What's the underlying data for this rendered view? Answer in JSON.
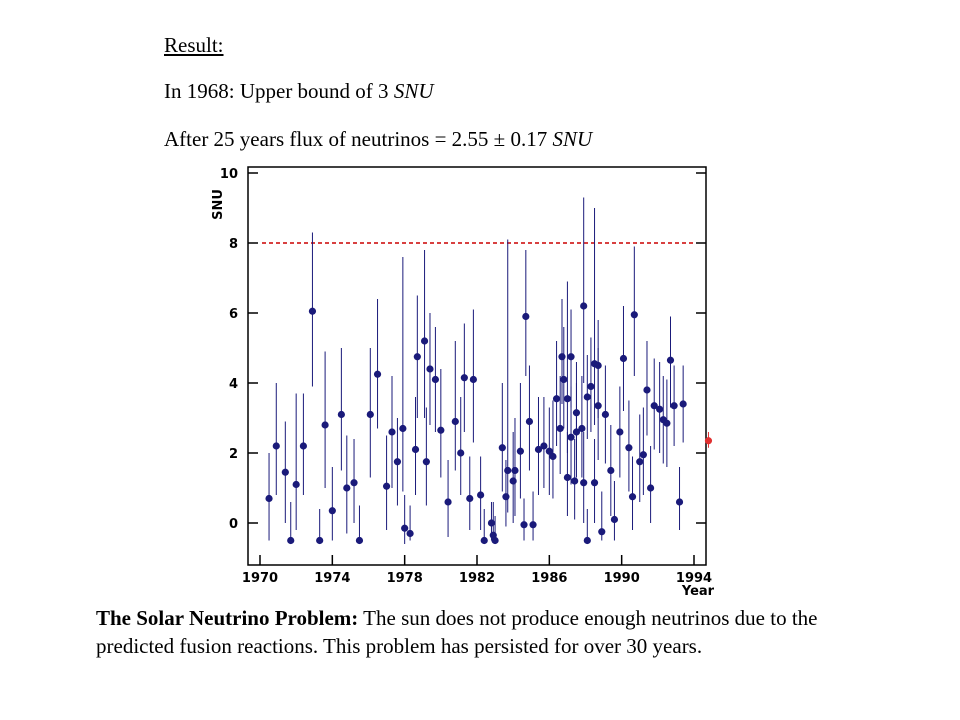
{
  "header": {
    "result_label": "Result:",
    "line_1968_prefix": "In 1968: Upper bound of 3 ",
    "line_1968_unit": "SNU",
    "line_25_prefix": "After 25 years flux of neutrinos = 2.55 ± 0.17 ",
    "line_25_unit": "SNU"
  },
  "caption": {
    "bold_part": "The Solar Neutrino Problem:",
    "rest": " The sun does not produce enough neutrinos due to the predicted fusion reactions. This problem has persisted for over 30 years."
  },
  "chart_data": {
    "type": "scatter",
    "xlabel": "Year",
    "ylabel": "SNU",
    "xlim": [
      1970,
      1994
    ],
    "ylim": [
      -1,
      10
    ],
    "x_ticks": [
      1970,
      1974,
      1978,
      1982,
      1986,
      1990,
      1994
    ],
    "y_ticks": [
      0,
      2,
      4,
      6,
      8,
      10
    ],
    "grid": false,
    "reference_line": {
      "y": 8,
      "style": "dashed",
      "color": "#cc0000"
    },
    "series": [
      {
        "color": "#1a1a7a",
        "points": [
          {
            "x": 1970.5,
            "y": 0.7,
            "lo": -0.5,
            "hi": 2.0
          },
          {
            "x": 1970.9,
            "y": 2.2,
            "lo": 0.8,
            "hi": 4.0
          },
          {
            "x": 1971.4,
            "y": 1.45,
            "lo": 0.0,
            "hi": 2.9
          },
          {
            "x": 1971.7,
            "y": -0.5,
            "lo": -0.5,
            "hi": 0.6
          },
          {
            "x": 1972.0,
            "y": 1.1,
            "lo": -0.2,
            "hi": 3.7
          },
          {
            "x": 1972.4,
            "y": 2.2,
            "lo": 0.8,
            "hi": 3.7
          },
          {
            "x": 1972.9,
            "y": 6.05,
            "lo": 3.9,
            "hi": 8.3
          },
          {
            "x": 1973.3,
            "y": -0.5,
            "lo": -0.5,
            "hi": 0.4
          },
          {
            "x": 1973.6,
            "y": 2.8,
            "lo": 1.0,
            "hi": 4.9
          },
          {
            "x": 1974.0,
            "y": 0.35,
            "lo": -0.5,
            "hi": 1.6
          },
          {
            "x": 1974.5,
            "y": 3.1,
            "lo": 1.5,
            "hi": 5.0
          },
          {
            "x": 1974.8,
            "y": 1.0,
            "lo": -0.3,
            "hi": 2.5
          },
          {
            "x": 1975.2,
            "y": 1.15,
            "lo": 0.0,
            "hi": 2.4
          },
          {
            "x": 1975.5,
            "y": -0.5,
            "lo": -0.5,
            "hi": 0.5
          },
          {
            "x": 1976.1,
            "y": 3.1,
            "lo": 1.3,
            "hi": 5.0
          },
          {
            "x": 1976.5,
            "y": 4.25,
            "lo": 2.7,
            "hi": 6.4
          },
          {
            "x": 1977.0,
            "y": 1.05,
            "lo": -0.2,
            "hi": 2.5
          },
          {
            "x": 1977.3,
            "y": 2.6,
            "lo": 1.0,
            "hi": 4.2
          },
          {
            "x": 1977.6,
            "y": 1.75,
            "lo": 0.5,
            "hi": 3.0
          },
          {
            "x": 1977.9,
            "y": 2.7,
            "lo": 0.9,
            "hi": 7.6
          },
          {
            "x": 1978.0,
            "y": -0.15,
            "lo": -0.6,
            "hi": 0.8
          },
          {
            "x": 1978.3,
            "y": -0.3,
            "lo": -0.5,
            "hi": 0.5
          },
          {
            "x": 1978.6,
            "y": 2.1,
            "lo": 0.8,
            "hi": 3.6
          },
          {
            "x": 1978.7,
            "y": 4.75,
            "lo": 3.0,
            "hi": 6.5
          },
          {
            "x": 1979.1,
            "y": 5.2,
            "lo": 3.0,
            "hi": 7.8
          },
          {
            "x": 1979.2,
            "y": 1.75,
            "lo": 0.5,
            "hi": 3.3
          },
          {
            "x": 1979.4,
            "y": 4.4,
            "lo": 2.8,
            "hi": 6.0
          },
          {
            "x": 1979.7,
            "y": 4.1,
            "lo": 2.6,
            "hi": 5.6
          },
          {
            "x": 1980.0,
            "y": 2.65,
            "lo": 1.3,
            "hi": 4.4
          },
          {
            "x": 1980.4,
            "y": 0.6,
            "lo": -0.4,
            "hi": 1.8
          },
          {
            "x": 1980.8,
            "y": 2.9,
            "lo": 1.5,
            "hi": 5.2
          },
          {
            "x": 1981.1,
            "y": 2.0,
            "lo": 0.8,
            "hi": 3.6
          },
          {
            "x": 1981.3,
            "y": 4.15,
            "lo": 2.6,
            "hi": 5.7
          },
          {
            "x": 1981.6,
            "y": 0.7,
            "lo": -0.2,
            "hi": 1.9
          },
          {
            "x": 1981.8,
            "y": 4.1,
            "lo": 2.3,
            "hi": 6.1
          },
          {
            "x": 1982.2,
            "y": 0.8,
            "lo": -0.2,
            "hi": 1.9
          },
          {
            "x": 1982.4,
            "y": -0.5,
            "lo": -0.5,
            "hi": 0.4
          },
          {
            "x": 1982.8,
            "y": 0.0,
            "lo": -0.5,
            "hi": 0.6
          },
          {
            "x": 1982.9,
            "y": -0.35,
            "lo": -0.5,
            "hi": 0.6
          },
          {
            "x": 1983.0,
            "y": -0.5,
            "lo": -0.5,
            "hi": 0.2
          },
          {
            "x": 1983.4,
            "y": 2.15,
            "lo": 0.9,
            "hi": 4.0
          },
          {
            "x": 1983.6,
            "y": 0.75,
            "lo": -0.1,
            "hi": 1.8
          },
          {
            "x": 1983.7,
            "y": 1.5,
            "lo": 0.3,
            "hi": 8.1
          },
          {
            "x": 1984.0,
            "y": 1.2,
            "lo": 0.0,
            "hi": 2.6
          },
          {
            "x": 1984.1,
            "y": 1.5,
            "lo": 0.2,
            "hi": 3.0
          },
          {
            "x": 1984.4,
            "y": 2.05,
            "lo": 0.7,
            "hi": 4.0
          },
          {
            "x": 1984.6,
            "y": -0.05,
            "lo": -0.5,
            "hi": 0.7
          },
          {
            "x": 1984.7,
            "y": 5.9,
            "lo": 4.2,
            "hi": 7.8
          },
          {
            "x": 1984.9,
            "y": 2.9,
            "lo": 1.5,
            "hi": 4.5
          },
          {
            "x": 1985.1,
            "y": -0.05,
            "lo": -0.5,
            "hi": 0.9
          },
          {
            "x": 1985.4,
            "y": 2.1,
            "lo": 0.8,
            "hi": 3.6
          },
          {
            "x": 1985.7,
            "y": 2.2,
            "lo": 1.0,
            "hi": 3.6
          },
          {
            "x": 1986.0,
            "y": 2.05,
            "lo": 0.8,
            "hi": 3.3
          },
          {
            "x": 1986.2,
            "y": 1.9,
            "lo": 0.7,
            "hi": 3.5
          },
          {
            "x": 1986.4,
            "y": 3.55,
            "lo": 2.2,
            "hi": 5.2
          },
          {
            "x": 1986.6,
            "y": 2.7,
            "lo": 1.4,
            "hi": 4.2
          },
          {
            "x": 1986.8,
            "y": 4.1,
            "lo": 2.7,
            "hi": 5.6
          },
          {
            "x": 1987.0,
            "y": 1.3,
            "lo": 0.2,
            "hi": 2.6
          },
          {
            "x": 1987.2,
            "y": 2.45,
            "lo": 1.1,
            "hi": 3.9
          },
          {
            "x": 1987.4,
            "y": 1.2,
            "lo": 0.1,
            "hi": 2.4
          },
          {
            "x": 1987.5,
            "y": 2.6,
            "lo": 1.3,
            "hi": 4.0
          },
          {
            "x": 1987.8,
            "y": 2.7,
            "lo": 1.3,
            "hi": 4.2
          },
          {
            "x": 1987.9,
            "y": 6.2,
            "lo": 4.0,
            "hi": 9.3
          },
          {
            "x": 1988.1,
            "y": -0.5,
            "lo": -0.5,
            "hi": 0.4
          },
          {
            "x": 1988.5,
            "y": 1.15,
            "lo": 0.0,
            "hi": 2.4
          },
          {
            "x": 1988.7,
            "y": 3.35,
            "lo": 1.8,
            "hi": 5.0
          }
        ]
      },
      {
        "color": "#1a1a7a",
        "points": [
          {
            "x": 1986.7,
            "y": 4.75,
            "lo": 3.4,
            "hi": 6.4
          },
          {
            "x": 1987.0,
            "y": 3.55,
            "lo": 2.0,
            "hi": 6.9
          },
          {
            "x": 1987.2,
            "y": 4.75,
            "lo": 3.3,
            "hi": 6.1
          },
          {
            "x": 1987.5,
            "y": 3.15,
            "lo": 1.8,
            "hi": 4.6
          },
          {
            "x": 1987.9,
            "y": 1.15,
            "lo": 0.0,
            "hi": 2.6
          },
          {
            "x": 1988.1,
            "y": 3.6,
            "lo": 2.4,
            "hi": 4.8
          },
          {
            "x": 1988.3,
            "y": 3.9,
            "lo": 2.6,
            "hi": 5.3
          },
          {
            "x": 1988.5,
            "y": 4.55,
            "lo": 2.8,
            "hi": 9.0
          },
          {
            "x": 1988.7,
            "y": 4.5,
            "lo": 3.0,
            "hi": 5.8
          },
          {
            "x": 1988.9,
            "y": -0.25,
            "lo": -0.5,
            "hi": 0.9
          },
          {
            "x": 1989.1,
            "y": 3.1,
            "lo": 1.7,
            "hi": 4.5
          },
          {
            "x": 1989.4,
            "y": 1.5,
            "lo": 0.2,
            "hi": 2.8
          },
          {
            "x": 1989.6,
            "y": 0.1,
            "lo": -0.5,
            "hi": 1.2
          },
          {
            "x": 1989.9,
            "y": 2.6,
            "lo": 1.3,
            "hi": 3.9
          },
          {
            "x": 1990.1,
            "y": 4.7,
            "lo": 3.2,
            "hi": 6.2
          },
          {
            "x": 1990.4,
            "y": 2.15,
            "lo": 0.9,
            "hi": 3.5
          },
          {
            "x": 1990.6,
            "y": 0.75,
            "lo": -0.2,
            "hi": 1.9
          },
          {
            "x": 1990.7,
            "y": 5.95,
            "lo": 4.2,
            "hi": 7.9
          },
          {
            "x": 1991.0,
            "y": 1.75,
            "lo": 0.6,
            "hi": 3.1
          },
          {
            "x": 1991.2,
            "y": 1.95,
            "lo": 0.8,
            "hi": 3.3
          },
          {
            "x": 1991.4,
            "y": 3.8,
            "lo": 2.5,
            "hi": 5.2
          },
          {
            "x": 1991.6,
            "y": 1.0,
            "lo": 0.0,
            "hi": 2.2
          },
          {
            "x": 1991.8,
            "y": 3.35,
            "lo": 2.1,
            "hi": 4.7
          },
          {
            "x": 1992.1,
            "y": 3.25,
            "lo": 2.0,
            "hi": 4.6
          },
          {
            "x": 1992.3,
            "y": 2.95,
            "lo": 1.7,
            "hi": 4.2
          },
          {
            "x": 1992.5,
            "y": 2.85,
            "lo": 1.6,
            "hi": 4.1
          },
          {
            "x": 1992.7,
            "y": 4.65,
            "lo": 3.3,
            "hi": 5.9
          },
          {
            "x": 1992.9,
            "y": 3.35,
            "lo": 2.2,
            "hi": 4.5
          },
          {
            "x": 1993.2,
            "y": 0.6,
            "lo": -0.2,
            "hi": 1.6
          },
          {
            "x": 1993.4,
            "y": 3.4,
            "lo": 2.3,
            "hi": 4.5
          }
        ]
      },
      {
        "color": "#e03030",
        "points": [
          {
            "x": 1994.8,
            "y": 2.35,
            "lo": 2.15,
            "hi": 2.6
          }
        ]
      }
    ]
  }
}
